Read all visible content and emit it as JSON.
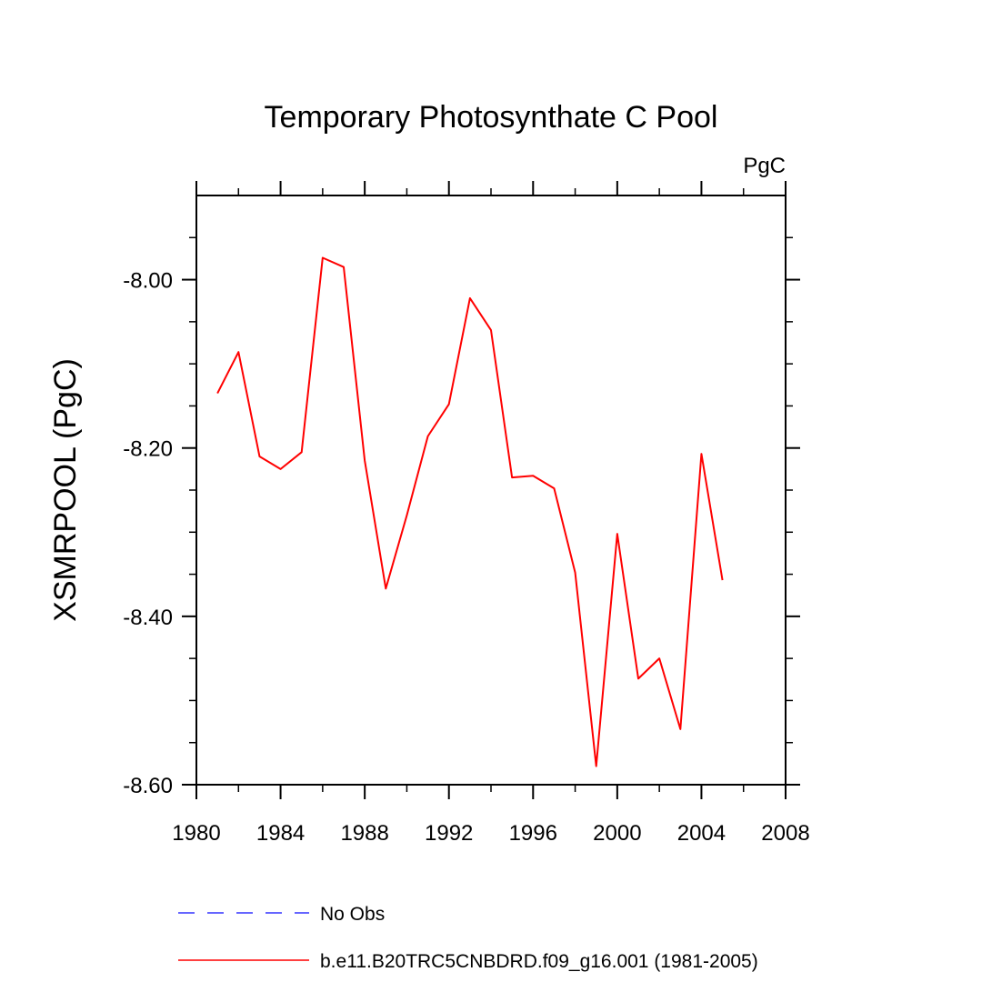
{
  "chart_data": {
    "type": "line",
    "title": "Temporary Photosynthate C Pool",
    "units": "PgC",
    "xlabel": "",
    "ylabel": "XSMRPOOL  (PgC)",
    "xlim": [
      1980,
      2008
    ],
    "ylim": [
      -8.6,
      -7.9
    ],
    "x_ticks": [
      1980,
      1984,
      1988,
      1992,
      1996,
      2000,
      2004,
      2008
    ],
    "x_tick_labels": [
      "1980",
      "1984",
      "1988",
      "1992",
      "1996",
      "2000",
      "2004",
      "2008"
    ],
    "y_ticks": [
      -8.0,
      -8.2,
      -8.4,
      -8.6
    ],
    "y_tick_labels": [
      "-8.00",
      "-8.20",
      "-8.40",
      "-8.60"
    ],
    "y_minor_step": 0.05,
    "x_minor_step": 2,
    "grid": false,
    "series": [
      {
        "name": "b.e11.B20TRC5CNBDRD.f09_g16.001 (1981-2005)",
        "color": "#ff0000",
        "style": "solid",
        "x": [
          1981,
          1982,
          1983,
          1984,
          1985,
          1986,
          1987,
          1988,
          1989,
          1990,
          1991,
          1992,
          1993,
          1994,
          1995,
          1996,
          1997,
          1998,
          1999,
          2000,
          2001,
          2002,
          2003,
          2004,
          2005
        ],
        "values": [
          -8.135,
          -8.086,
          -8.21,
          -8.225,
          -8.205,
          -7.974,
          -7.985,
          -8.215,
          -8.367,
          -8.28,
          -8.186,
          -8.148,
          -8.022,
          -8.06,
          -8.235,
          -8.233,
          -8.248,
          -8.348,
          -8.578,
          -8.302,
          -8.474,
          -8.45,
          -8.534,
          -8.207,
          -8.357
        ]
      }
    ],
    "legend": {
      "position": "bottom-left",
      "entries": [
        {
          "label": "No Obs",
          "color": "#3333ff",
          "style": "dashed"
        },
        {
          "label": "b.e11.B20TRC5CNBDRD.f09_g16.001 (1981-2005)",
          "color": "#ff0000",
          "style": "solid"
        }
      ]
    }
  }
}
